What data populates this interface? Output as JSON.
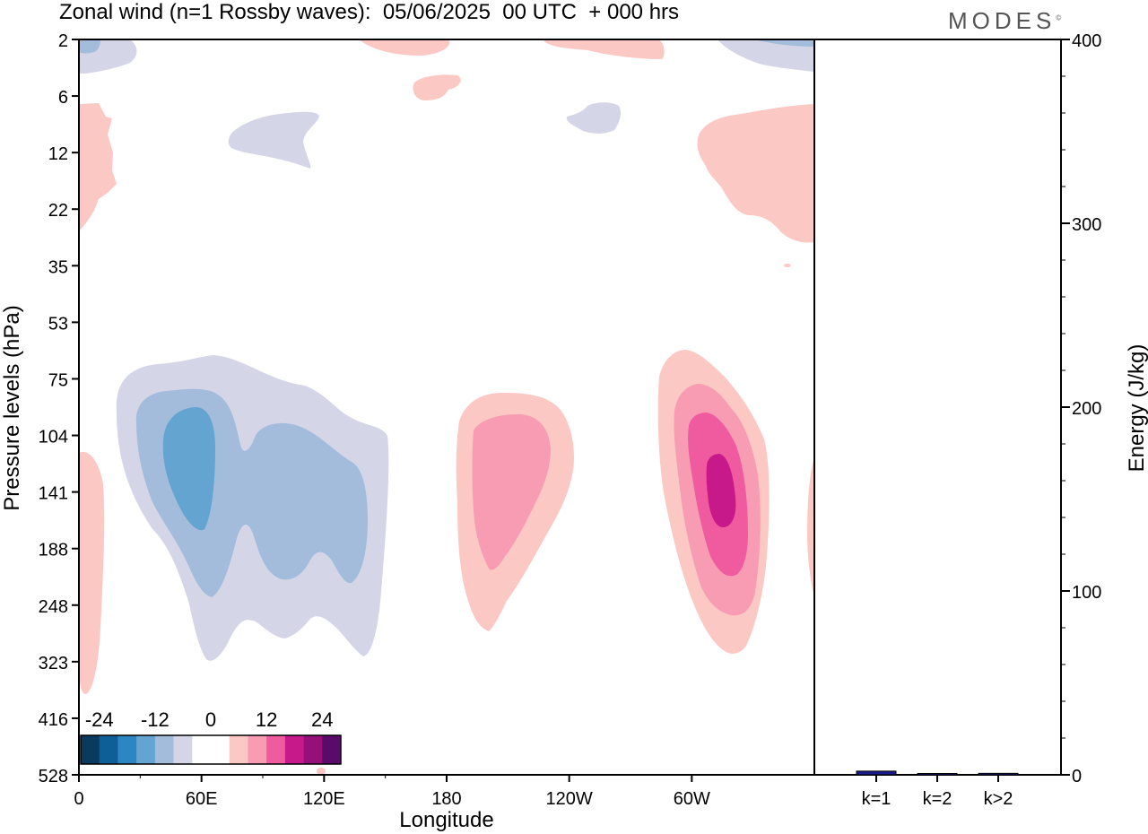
{
  "title": "Zonal wind (n=1 Rossby waves):  05/06/2025  00 UTC  + 000 hrs",
  "logo": "MODES",
  "logo_mark": "©",
  "colors": {
    "neg": [
      "#0a3a5c",
      "#0e5f97",
      "#2b86c2",
      "#63a4d0",
      "#a3bcdc",
      "#d4d6e8"
    ],
    "pos": [
      "#fbc8c4",
      "#f89cb4",
      "#f05a9e",
      "#c8198a",
      "#96107a",
      "#5a0a68"
    ],
    "bar": "#1a1a8c"
  },
  "chart_data": [
    {
      "type": "heatmap",
      "title": "Zonal wind (n=1 Rossby waves):  05/06/2025  00 UTC  + 000 hrs",
      "xlabel": "Longitude",
      "ylabel": "Pressure levels (hPa)",
      "x_ticks": [
        "0",
        "60E",
        "120E",
        "180",
        "120W",
        "60W"
      ],
      "y_ticks": [
        "2",
        "6",
        "12",
        "22",
        "35",
        "53",
        "75",
        "104",
        "141",
        "188",
        "248",
        "323",
        "416",
        "528"
      ],
      "colorbar": {
        "ticks": [
          "-24",
          "-12",
          "0",
          "12",
          "24"
        ],
        "levels": [
          -28,
          -24,
          -20,
          -16,
          -12,
          -8,
          -4,
          4,
          8,
          12,
          16,
          20,
          24,
          28
        ]
      },
      "features": [
        {
          "sign": "negative",
          "peak_level_hPa": 125,
          "longitude": "60E",
          "min_value": -16
        },
        {
          "sign": "positive",
          "peak_level_hPa": 125,
          "longitude": "170W",
          "max_value": 12
        },
        {
          "sign": "positive",
          "peak_level_hPa": 141,
          "longitude": "50W",
          "max_value": 20
        }
      ]
    },
    {
      "type": "bar",
      "categories": [
        "k=1",
        "k=2",
        "k>2"
      ],
      "values": [
        2,
        0.3,
        0.8
      ],
      "ylabel": "Energy (J/kg)",
      "ylim": [
        0,
        400
      ],
      "y_ticks": [
        "0",
        "100",
        "200",
        "300",
        "400"
      ]
    }
  ]
}
